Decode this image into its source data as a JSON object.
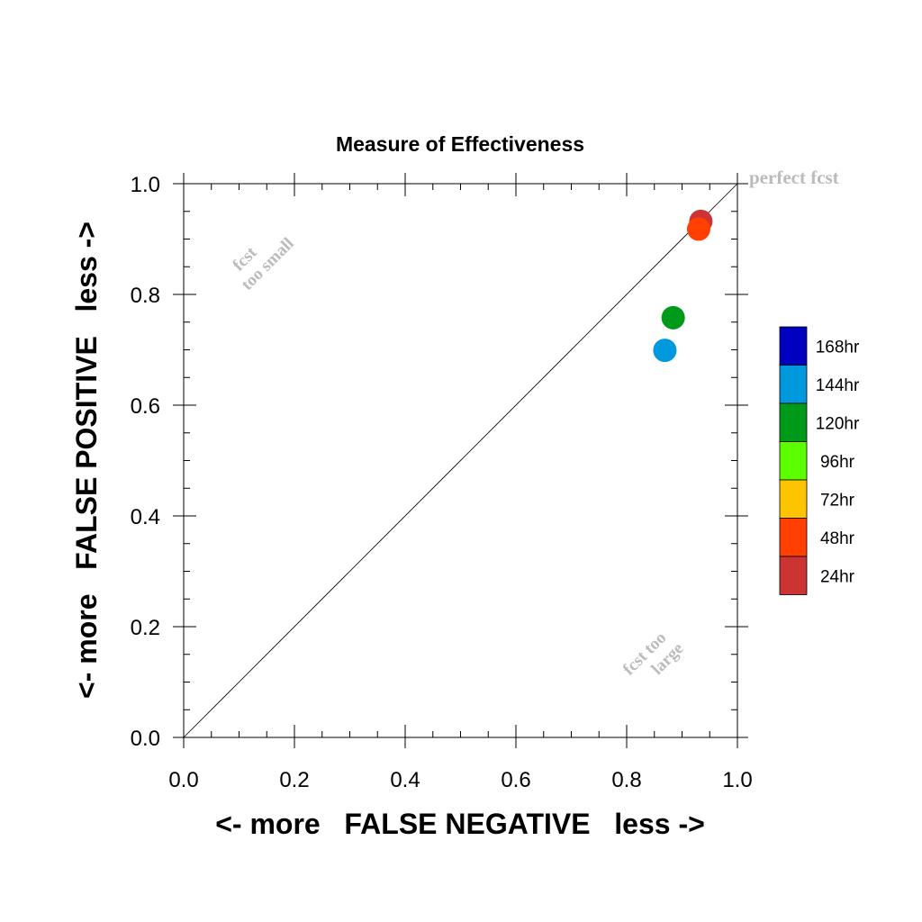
{
  "chart_data": {
    "type": "scatter",
    "title": "Measure of Effectiveness",
    "xlabel": "<- more   FALSE NEGATIVE   less ->",
    "ylabel": "<- more   FALSE POSITIVE   less ->",
    "xlim": [
      0.0,
      1.0
    ],
    "ylim": [
      0.0,
      1.0
    ],
    "x_ticks": [
      "0.0",
      "0.2",
      "0.4",
      "0.6",
      "0.8",
      "1.0"
    ],
    "y_ticks": [
      "0.0",
      "0.2",
      "0.4",
      "0.6",
      "0.8",
      "1.0"
    ],
    "grid": false,
    "diagonal_line": true,
    "annotations": {
      "perfect": "perfect fcst",
      "too_small_1": "fcst",
      "too_small_2": "too small",
      "too_large_1": "fcst too",
      "too_large_2": "large"
    },
    "legend": {
      "placement": "right",
      "entries": [
        {
          "label": "168hr",
          "color": "#0000c0"
        },
        {
          "label": "144hr",
          "color": "#0099dd"
        },
        {
          "label": "120hr",
          "color": "#009a1a"
        },
        {
          "label": "96hr",
          "color": "#5cff00"
        },
        {
          "label": "72hr",
          "color": "#ffc400"
        },
        {
          "label": "48hr",
          "color": "#ff4000"
        },
        {
          "label": "24hr",
          "color": "#cc3333"
        }
      ]
    },
    "points": [
      {
        "label": "24hr",
        "x": 0.934,
        "y": 0.932,
        "color": "#cc3333"
      },
      {
        "label": "48hr",
        "x": 0.93,
        "y": 0.918,
        "color": "#ff4000"
      },
      {
        "label": "120hr",
        "x": 0.884,
        "y": 0.758,
        "color": "#009a1a"
      },
      {
        "label": "144hr",
        "x": 0.869,
        "y": 0.699,
        "color": "#0099dd"
      }
    ]
  }
}
